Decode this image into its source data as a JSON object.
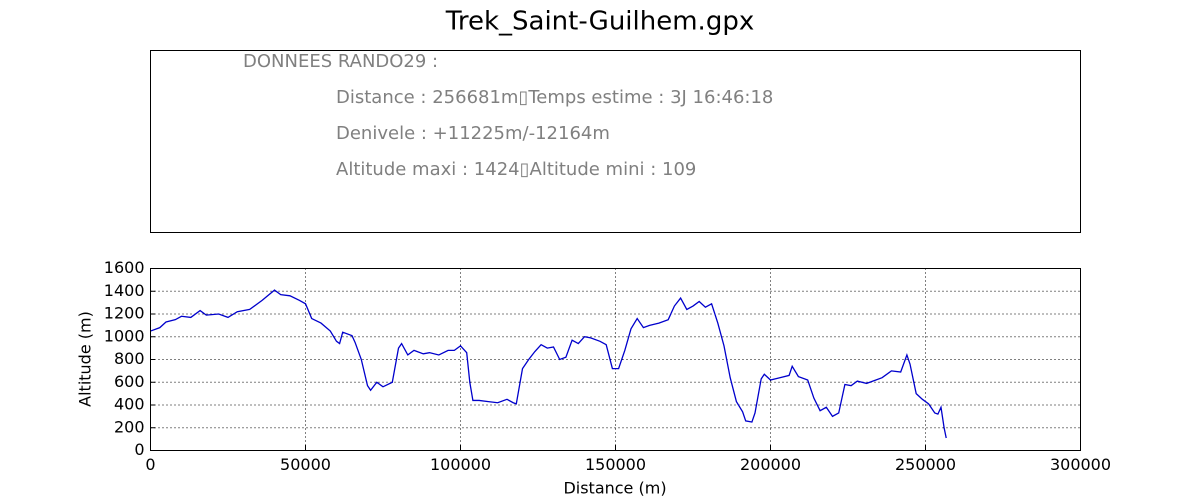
{
  "info_box": {
    "lines": [
      "DONNEES RANDO29  :",
      "Distance : 256681m▯Temps estime : 3J 16:46:18",
      "Denivele : +11225m/-12164m",
      "Altitude maxi : 1424▯Altitude mini : 109"
    ]
  },
  "chart_data": {
    "type": "line",
    "title": "Trek_Saint-Guilhem.gpx",
    "x_label": "Distance (m)",
    "y_label": "Altitude (m)",
    "x": [
      0,
      3000,
      5000,
      8000,
      10000,
      13000,
      16000,
      18000,
      22000,
      25000,
      28000,
      32000,
      36000,
      40000,
      42000,
      45000,
      48000,
      50000,
      52000,
      55000,
      58000,
      60000,
      61000,
      62000,
      65000,
      66000,
      68000,
      70000,
      71000,
      73000,
      75000,
      78000,
      80000,
      81000,
      83000,
      85000,
      88000,
      90000,
      93000,
      96000,
      98000,
      100000,
      102000,
      103000,
      104000,
      106000,
      109000,
      112000,
      115000,
      117000,
      118000,
      120000,
      122000,
      124000,
      126000,
      128000,
      130000,
      132000,
      134000,
      136000,
      138000,
      140000,
      142000,
      145000,
      147000,
      149000,
      151000,
      153000,
      155000,
      157000,
      159000,
      161000,
      164000,
      167000,
      169000,
      171000,
      173000,
      175000,
      177000,
      179000,
      181000,
      183000,
      185000,
      187000,
      189000,
      191000,
      192000,
      194000,
      195000,
      197000,
      198000,
      200000,
      203000,
      206000,
      207000,
      209000,
      212000,
      214000,
      216000,
      218000,
      220000,
      222000,
      224000,
      226000,
      228000,
      231000,
      234000,
      236000,
      239000,
      242000,
      244000,
      245000,
      247000,
      249000,
      251000,
      253000,
      254000,
      255000,
      256000,
      256681
    ],
    "series": [
      {
        "name": "Altitude",
        "color": "#0000cc",
        "values": [
          1050,
          1080,
          1130,
          1150,
          1180,
          1170,
          1230,
          1190,
          1200,
          1170,
          1220,
          1240,
          1320,
          1410,
          1370,
          1360,
          1320,
          1290,
          1160,
          1120,
          1050,
          960,
          940,
          1040,
          1010,
          950,
          800,
          570,
          530,
          600,
          560,
          600,
          900,
          940,
          840,
          880,
          850,
          860,
          840,
          880,
          880,
          920,
          860,
          600,
          440,
          440,
          430,
          420,
          450,
          420,
          410,
          720,
          800,
          870,
          930,
          900,
          910,
          800,
          820,
          970,
          940,
          1000,
          990,
          960,
          930,
          720,
          720,
          880,
          1070,
          1160,
          1080,
          1100,
          1120,
          1150,
          1270,
          1340,
          1240,
          1270,
          1310,
          1260,
          1290,
          1120,
          920,
          640,
          430,
          340,
          260,
          250,
          330,
          630,
          670,
          620,
          640,
          660,
          740,
          650,
          620,
          460,
          350,
          380,
          300,
          330,
          580,
          570,
          610,
          590,
          620,
          640,
          700,
          690,
          840,
          760,
          500,
          450,
          410,
          330,
          320,
          380,
          200,
          110
        ]
      }
    ],
    "xlim": [
      0,
      300000
    ],
    "xticks": [
      0,
      50000,
      100000,
      150000,
      200000,
      250000,
      300000
    ],
    "ylim": [
      0,
      1600
    ],
    "yticks": [
      0,
      200,
      400,
      600,
      800,
      1000,
      1200,
      1400,
      1600
    ],
    "grid": true
  }
}
